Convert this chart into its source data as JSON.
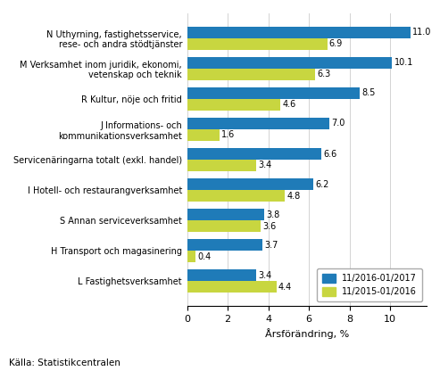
{
  "categories": [
    "N Uthyrning, fastighetsservice,\nrese- och andra stödtjänster",
    "M Verksamhet inom juridik, ekonomi,\nvetenskap och teknik",
    "R Kultur, nöje och fritid",
    "J Informations- och\nkommunikationsverksamhet",
    "Servicenäringarna totalt (exkl. handel)",
    "I Hotell- och restaurangverksamhet",
    "S Annan serviceverksamhet",
    "H Transport och magasinering",
    "L Fastighetsverksamhet"
  ],
  "values_2017": [
    11.0,
    10.1,
    8.5,
    7.0,
    6.6,
    6.2,
    3.8,
    3.7,
    3.4
  ],
  "values_2016": [
    6.9,
    6.3,
    4.6,
    1.6,
    3.4,
    4.8,
    3.6,
    0.4,
    4.4
  ],
  "color_2017": "#1F7BB8",
  "color_2016": "#C8D640",
  "legend_2017": "11/2016-01/2017",
  "legend_2016": "11/2015-01/2016",
  "xlabel": "Årsförändring, %",
  "xlim": [
    0,
    11.8
  ],
  "xticks": [
    0,
    2,
    4,
    6,
    8,
    10
  ],
  "source": "Källa: Statistikcentralen",
  "bar_height": 0.38,
  "label_fontsize": 7.0,
  "tick_fontsize": 8,
  "value_fontsize": 7.0
}
